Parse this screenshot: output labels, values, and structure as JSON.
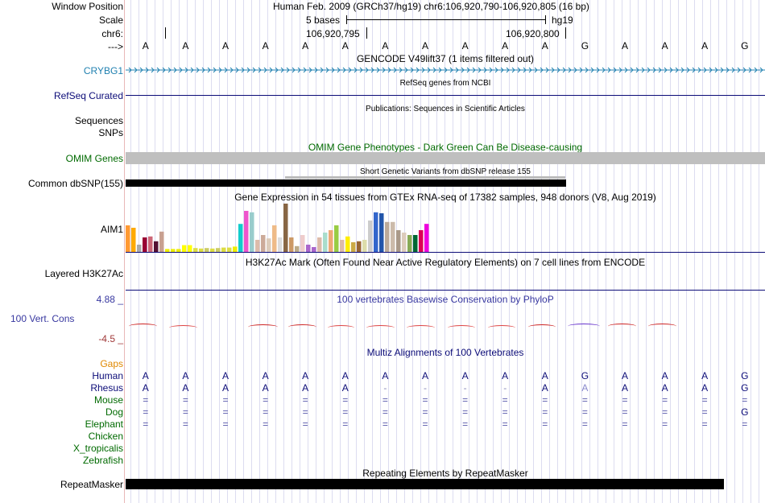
{
  "header": {
    "window_position_label": "Window Position",
    "window_position_value": "Human Feb. 2009 (GRCh37/hg19)   chr6:106,920,790-106,920,805 (16 bp)",
    "scale_label": "Scale",
    "scale_text": "5 bases",
    "scale_assembly": "hg19",
    "chrom_label": "chr6:",
    "coord_left": "106,920,795",
    "coord_right": "106,920,800",
    "arrow_label": "--->"
  },
  "sequence": [
    "A",
    "A",
    "A",
    "A",
    "A",
    "A",
    "A",
    "A",
    "A",
    "A",
    "A",
    "G",
    "A",
    "A",
    "A",
    "G"
  ],
  "tracks": {
    "gencode": {
      "title": "GENCODE V49lift37 (1 items filtered out)",
      "gene": "CRYBG1",
      "color": "#2080b0"
    },
    "refseq": {
      "title": "RefSeq genes from NCBI",
      "label": "RefSeq Curated",
      "color": "#0c0c78"
    },
    "publications": {
      "title": "Publications: Sequences in Scientific Articles",
      "label1": "Sequences",
      "label2": "SNPs"
    },
    "omim": {
      "title": "OMIM Gene Phenotypes - Dark Green Can Be Disease-causing",
      "label": "OMIM Genes",
      "color": "#006a00"
    },
    "dbsnp": {
      "title": "Short Genetic Variants from dbSNP release 155",
      "label": "Common dbSNP(155)"
    },
    "gtex": {
      "title": "Gene Expression in 54 tissues from GTEx RNA-seq of 17382 samples, 948 donors (V8, Aug 2019)",
      "gene": "AIM1"
    },
    "h3k27ac": {
      "title": "H3K27Ac Mark (Often Found Near Active Regulatory Elements) on 7 cell lines from ENCODE",
      "label": "Layered H3K27Ac"
    },
    "phylop": {
      "title": "100 vertebrates Basewise Conservation by PhyloP",
      "label": "100 Vert. Cons",
      "max": "4.88 _",
      "min": "-4.5 _",
      "color": "#3838a0"
    },
    "multiz": {
      "title": "Multiz Alignments of 100 Vertebrates",
      "gaps_label": "Gaps"
    },
    "repeatmasker": {
      "title": "Repeating Elements by RepeatMasker",
      "label": "RepeatMasker"
    }
  },
  "species": [
    {
      "name": "Human",
      "color": "#0c0c78",
      "bases": [
        "A",
        "A",
        "A",
        "A",
        "A",
        "A",
        "A",
        "A",
        "A",
        "A",
        "A",
        "G",
        "A",
        "A",
        "A",
        "G"
      ]
    },
    {
      "name": "Rhesus",
      "color": "#0c0c78",
      "bases": [
        "A",
        "A",
        "A",
        "A",
        "A",
        "A",
        "-",
        "-",
        "-",
        "-",
        "A",
        "A",
        "A",
        "A",
        "A",
        "G"
      ]
    },
    {
      "name": "Mouse",
      "color": "#006a00",
      "bases": [
        "=",
        "=",
        "=",
        "=",
        "=",
        "=",
        "=",
        "=",
        "=",
        "=",
        "=",
        "=",
        "=",
        "=",
        "=",
        "="
      ]
    },
    {
      "name": "Dog",
      "color": "#006a00",
      "bases": [
        "=",
        "=",
        "=",
        "=",
        "=",
        "=",
        "=",
        "=",
        "=",
        "=",
        "=",
        "=",
        "=",
        "=",
        "=",
        "G"
      ]
    },
    {
      "name": "Elephant",
      "color": "#006a00",
      "bases": [
        "=",
        "=",
        "=",
        "=",
        "=",
        "=",
        "=",
        "=",
        "=",
        "=",
        "=",
        "=",
        "=",
        "=",
        "=",
        "="
      ]
    },
    {
      "name": "Chicken",
      "color": "#006a00",
      "bases": []
    },
    {
      "name": "X_tropicalis",
      "color": "#006a00",
      "bases": []
    },
    {
      "name": "Zebrafish",
      "color": "#006a00",
      "bases": []
    }
  ],
  "gtex_bars": [
    {
      "v": 0.55,
      "c": "#ff9933"
    },
    {
      "v": 0.5,
      "c": "#ffaa00"
    },
    {
      "v": 0.15,
      "c": "#aaaaaa"
    },
    {
      "v": 0.3,
      "c": "#990033"
    },
    {
      "v": 0.32,
      "c": "#cc6677"
    },
    {
      "v": 0.22,
      "c": "#551133"
    },
    {
      "v": 0.42,
      "c": "#c8a090"
    },
    {
      "v": 0.06,
      "c": "#eeee00"
    },
    {
      "v": 0.06,
      "c": "#eeee00"
    },
    {
      "v": 0.06,
      "c": "#eeee00"
    },
    {
      "v": 0.14,
      "c": "#ffff00"
    },
    {
      "v": 0.14,
      "c": "#ffff00"
    },
    {
      "v": 0.08,
      "c": "#dddd44"
    },
    {
      "v": 0.07,
      "c": "#dddd44"
    },
    {
      "v": 0.08,
      "c": "#cccc66"
    },
    {
      "v": 0.07,
      "c": "#dddd44"
    },
    {
      "v": 0.08,
      "c": "#cccc66"
    },
    {
      "v": 0.09,
      "c": "#dddd44"
    },
    {
      "v": 0.09,
      "c": "#dddd44"
    },
    {
      "v": 0.11,
      "c": "#eeee00"
    },
    {
      "v": 0.58,
      "c": "#11cccc"
    },
    {
      "v": 0.85,
      "c": "#ee55cc"
    },
    {
      "v": 0.82,
      "c": "#99cccc"
    },
    {
      "v": 0.25,
      "c": "#ddbbaa"
    },
    {
      "v": 0.35,
      "c": "#ccaa99"
    },
    {
      "v": 0.28,
      "c": "#ddccbb"
    },
    {
      "v": 0.55,
      "c": "#eebb88"
    },
    {
      "v": 0.3,
      "c": "#dddddd"
    },
    {
      "v": 1.0,
      "c": "#886644"
    },
    {
      "v": 0.3,
      "c": "#cc9966"
    },
    {
      "v": 0.12,
      "c": "#bbaa88"
    },
    {
      "v": 0.35,
      "c": "#eecccc"
    },
    {
      "v": 0.15,
      "c": "#aa66cc"
    },
    {
      "v": 0.1,
      "c": "#aa66cc"
    },
    {
      "v": 0.3,
      "c": "#ddbbaa"
    },
    {
      "v": 0.4,
      "c": "#aaddcc"
    },
    {
      "v": 0.45,
      "c": "#eeaa77"
    },
    {
      "v": 0.55,
      "c": "#99cc44"
    },
    {
      "v": 0.25,
      "c": "#ddbbaa"
    },
    {
      "v": 0.32,
      "c": "#ffee00"
    },
    {
      "v": 0.2,
      "c": "#ccaa44"
    },
    {
      "v": 0.22,
      "c": "#996633"
    },
    {
      "v": 0.25,
      "c": "#ddddaa"
    },
    {
      "v": 0.65,
      "c": "#cccccc"
    },
    {
      "v": 0.82,
      "c": "#3366cc"
    },
    {
      "v": 0.8,
      "c": "#2255aa"
    },
    {
      "v": 0.62,
      "c": "#bbaa99"
    },
    {
      "v": 0.62,
      "c": "#ccbbaa"
    },
    {
      "v": 0.45,
      "c": "#aa9988"
    },
    {
      "v": 0.4,
      "c": "#ddccbb"
    },
    {
      "v": 0.35,
      "c": "#88aa55"
    },
    {
      "v": 0.35,
      "c": "#006633"
    },
    {
      "v": 0.45,
      "c": "#dd0055"
    },
    {
      "v": 0.58,
      "c": "#ee00dd"
    }
  ]
}
